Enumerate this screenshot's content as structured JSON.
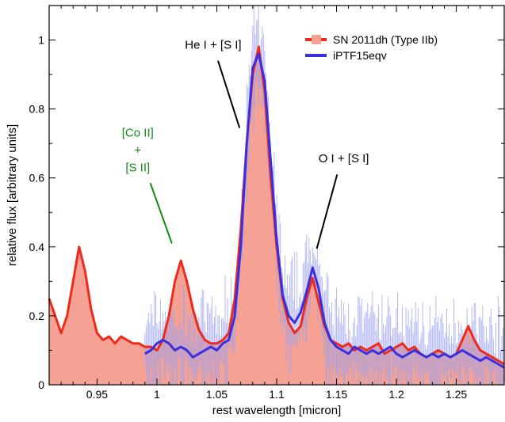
{
  "chart_data": {
    "type": "area",
    "xlabel": "rest wavelength [micron]",
    "ylabel": "relative flux [arbitrary units]",
    "xlim": [
      0.91,
      1.29
    ],
    "ylim": [
      0,
      1.1
    ],
    "xticks": [
      0.95,
      1.0,
      1.05,
      1.1,
      1.15,
      1.2,
      1.25
    ],
    "xtick_labels": [
      "0.95",
      "1",
      "1.05",
      "1.1",
      "1.15",
      "1.2",
      "1.25"
    ],
    "yticks": [
      0,
      0.2,
      0.4,
      0.6,
      0.8,
      1.0
    ],
    "ytick_labels": [
      "0",
      "0.2",
      "0.4",
      "0.6",
      "0.8",
      "1"
    ],
    "grid": false,
    "legend_position": "top-right",
    "series": [
      {
        "name": "SN 2011dh (Type IIb)",
        "color": "#ee2a1c",
        "fill": "#f5a194",
        "x": [
          0.91,
          0.915,
          0.92,
          0.925,
          0.93,
          0.935,
          0.94,
          0.945,
          0.95,
          0.955,
          0.96,
          0.965,
          0.97,
          0.975,
          0.98,
          0.985,
          0.99,
          0.995,
          1.0,
          1.005,
          1.01,
          1.015,
          1.02,
          1.025,
          1.03,
          1.035,
          1.04,
          1.045,
          1.05,
          1.055,
          1.06,
          1.065,
          1.07,
          1.075,
          1.08,
          1.085,
          1.09,
          1.095,
          1.1,
          1.105,
          1.11,
          1.115,
          1.12,
          1.125,
          1.13,
          1.135,
          1.14,
          1.145,
          1.15,
          1.155,
          1.16,
          1.165,
          1.17,
          1.175,
          1.18,
          1.185,
          1.19,
          1.195,
          1.2,
          1.205,
          1.21,
          1.215,
          1.22,
          1.225,
          1.23,
          1.235,
          1.24,
          1.245,
          1.25,
          1.255,
          1.26,
          1.265,
          1.27,
          1.275,
          1.28,
          1.285,
          1.29
        ],
        "y": [
          0.25,
          0.2,
          0.15,
          0.2,
          0.3,
          0.4,
          0.33,
          0.22,
          0.15,
          0.13,
          0.14,
          0.12,
          0.14,
          0.13,
          0.12,
          0.12,
          0.11,
          0.11,
          0.1,
          0.13,
          0.2,
          0.3,
          0.36,
          0.3,
          0.22,
          0.16,
          0.13,
          0.12,
          0.12,
          0.13,
          0.15,
          0.25,
          0.45,
          0.7,
          0.9,
          0.98,
          0.85,
          0.6,
          0.4,
          0.25,
          0.18,
          0.15,
          0.17,
          0.25,
          0.31,
          0.24,
          0.17,
          0.13,
          0.12,
          0.11,
          0.12,
          0.1,
          0.11,
          0.1,
          0.11,
          0.12,
          0.09,
          0.1,
          0.11,
          0.12,
          0.1,
          0.11,
          0.09,
          0.08,
          0.09,
          0.1,
          0.09,
          0.08,
          0.09,
          0.13,
          0.17,
          0.13,
          0.1,
          0.09,
          0.08,
          0.07,
          0.06
        ]
      },
      {
        "name": "iPTF15eqv",
        "color": "#3a2fe0",
        "noise_color": "#9aa2f0",
        "x": [
          0.99,
          0.995,
          1.0,
          1.005,
          1.01,
          1.015,
          1.02,
          1.025,
          1.03,
          1.035,
          1.04,
          1.045,
          1.05,
          1.055,
          1.06,
          1.065,
          1.07,
          1.075,
          1.08,
          1.085,
          1.09,
          1.095,
          1.1,
          1.105,
          1.11,
          1.115,
          1.12,
          1.125,
          1.13,
          1.135,
          1.14,
          1.145,
          1.15,
          1.155,
          1.16,
          1.165,
          1.17,
          1.175,
          1.18,
          1.185,
          1.19,
          1.195,
          1.2,
          1.205,
          1.21,
          1.215,
          1.22,
          1.225,
          1.23,
          1.235,
          1.24,
          1.245,
          1.25,
          1.255,
          1.26,
          1.265,
          1.27,
          1.275,
          1.28,
          1.285,
          1.29
        ],
        "y": [
          0.09,
          0.1,
          0.12,
          0.13,
          0.12,
          0.1,
          0.11,
          0.1,
          0.08,
          0.09,
          0.1,
          0.11,
          0.1,
          0.12,
          0.13,
          0.2,
          0.4,
          0.7,
          0.92,
          0.96,
          0.88,
          0.65,
          0.42,
          0.26,
          0.2,
          0.18,
          0.21,
          0.27,
          0.34,
          0.28,
          0.18,
          0.13,
          0.11,
          0.1,
          0.09,
          0.11,
          0.1,
          0.09,
          0.1,
          0.09,
          0.1,
          0.11,
          0.09,
          0.08,
          0.09,
          0.1,
          0.09,
          0.08,
          0.09,
          0.08,
          0.09,
          0.08,
          0.09,
          0.1,
          0.09,
          0.08,
          0.07,
          0.08,
          0.07,
          0.06,
          0.05
        ]
      }
    ],
    "annotations": [
      {
        "id": "he",
        "lines": [
          "He I + [S I]"
        ],
        "color": "#000000",
        "text_x": 1.047,
        "text_y": 0.975,
        "line_from": [
          1.051,
          0.94
        ],
        "line_to": [
          1.069,
          0.745
        ]
      },
      {
        "id": "co",
        "lines": [
          "[Co II]",
          "+",
          "[S II]"
        ],
        "color": "#138a16",
        "text_x": 0.984,
        "text_y": 0.72,
        "line_from": [
          0.9945,
          0.585
        ],
        "line_to": [
          1.0125,
          0.41
        ]
      },
      {
        "id": "oi",
        "lines": [
          "O I + [S I]"
        ],
        "color": "#000000",
        "text_x": 1.156,
        "text_y": 0.645,
        "line_from": [
          1.1505,
          0.61
        ],
        "line_to": [
          1.1335,
          0.395
        ]
      }
    ]
  }
}
